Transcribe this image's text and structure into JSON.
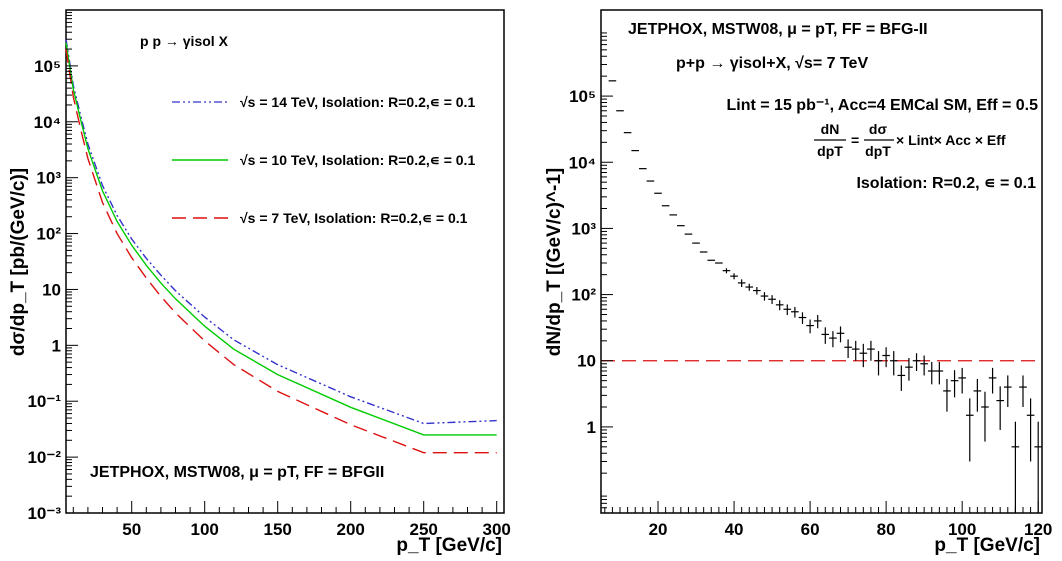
{
  "chart_data": [
    {
      "type": "line",
      "ylabel": "dσ/dp_T [pb/(GeV/c)]",
      "xlabel": "p_T [GeV/c]",
      "log_y": true,
      "xlim": [
        5,
        305
      ],
      "ylim": [
        0.001,
        1000000
      ],
      "x_ticks": [
        50,
        100,
        150,
        200,
        250,
        300
      ],
      "y_ticks": [
        {
          "value": 0.001,
          "label": "10⁻³"
        },
        {
          "value": 0.01,
          "label": "10⁻²"
        },
        {
          "value": 0.1,
          "label": "10⁻¹"
        },
        {
          "value": 1,
          "label": "1"
        },
        {
          "value": 10,
          "label": "10"
        },
        {
          "value": 100,
          "label": "10²"
        },
        {
          "value": 1000,
          "label": "10³"
        },
        {
          "value": 10000,
          "label": "10⁴"
        },
        {
          "value": 100000,
          "label": "10⁵"
        }
      ],
      "grid": false,
      "legend_position": "top-center",
      "process_label": "p p → γisol X",
      "annotation": "JETPHOX, MSTW08, μ = pT, FF = BFGII",
      "x": [
        5,
        10,
        15,
        20,
        30,
        40,
        50,
        60,
        70,
        80,
        100,
        120,
        150,
        200,
        250,
        300
      ],
      "series": [
        {
          "name": "√s = 14 TeV, Isolation: R=0.2,∊ = 0.1",
          "color": "#3333cc",
          "line_style": "dash-dot",
          "values": [
            300000,
            45000,
            13000,
            4000,
            720,
            210,
            80,
            36,
            18,
            9.5,
            3.2,
            1.25,
            0.45,
            0.12,
            0.04,
            0.045
          ]
        },
        {
          "name": "√s = 10 TeV, Isolation: R=0.2,∊ = 0.1",
          "color": "#00cc00",
          "line_style": "solid",
          "values": [
            260000,
            38000,
            11000,
            3300,
            580,
            165,
            62,
            27,
            13,
            6.8,
            2.2,
            0.85,
            0.3,
            0.078,
            0.025,
            0.025
          ]
        },
        {
          "name": "√s = 7 TeV, Isolation: R=0.2,∊ = 0.1",
          "color": "#dd1111",
          "line_style": "dashed",
          "values": [
            200000,
            28000,
            7500,
            2200,
            360,
            100,
            37,
            16,
            7.5,
            3.8,
            1.2,
            0.45,
            0.15,
            0.038,
            0.012,
            0.012
          ]
        }
      ]
    },
    {
      "type": "scatter",
      "ylabel": "dN/dp_T [(GeV/c)^-1]",
      "xlabel": "p_T [GeV/c]",
      "log_y": true,
      "xlim": [
        5,
        121
      ],
      "ylim": [
        0.05,
        2000000
      ],
      "x_ticks": [
        20,
        40,
        60,
        80,
        100,
        120
      ],
      "y_ticks": [
        {
          "value": 1,
          "label": "1"
        },
        {
          "value": 10,
          "label": "10"
        },
        {
          "value": 100,
          "label": "10²"
        },
        {
          "value": 1000,
          "label": "10³"
        },
        {
          "value": 10000,
          "label": "10⁴"
        },
        {
          "value": 100000,
          "label": "10⁵"
        }
      ],
      "grid": false,
      "reference_line": {
        "y": 10,
        "color": "#dd1111",
        "style": "dashed"
      },
      "header": "JETPHOX, MSTW08, μ = pT, FF = BFG-II",
      "process_label": "p+p → γisol+X, √s= 7 TeV",
      "lumi_label": "Lint = 15 pb⁻¹, Acc=4 EMCal SM, Eff = 0.5",
      "formula_lhs_num": "dN",
      "formula_lhs_den": "dpT",
      "formula_eq": "=",
      "formula_rhs_num": "dσ",
      "formula_rhs_den": "dpT",
      "formula_tail": "× Lint× Acc × Eff",
      "isolation_label": "Isolation: R=0.2, ∊ = 0.1",
      "points": [
        {
          "x": 8,
          "y": 170000,
          "err": 0
        },
        {
          "x": 10,
          "y": 60000,
          "err": 0
        },
        {
          "x": 12,
          "y": 28000,
          "err": 0
        },
        {
          "x": 14,
          "y": 15000,
          "err": 0
        },
        {
          "x": 16,
          "y": 8000,
          "err": 0
        },
        {
          "x": 18,
          "y": 5200,
          "err": 0
        },
        {
          "x": 20,
          "y": 3400,
          "err": 0
        },
        {
          "x": 22,
          "y": 2200,
          "err": 0
        },
        {
          "x": 24,
          "y": 1600,
          "err": 0
        },
        {
          "x": 26,
          "y": 1100,
          "err": 0
        },
        {
          "x": 28,
          "y": 820,
          "err": 0
        },
        {
          "x": 30,
          "y": 600,
          "err": 0
        },
        {
          "x": 32,
          "y": 440,
          "err": 0
        },
        {
          "x": 34,
          "y": 330,
          "err": 0
        },
        {
          "x": 36,
          "y": 300,
          "err": 0
        },
        {
          "x": 38,
          "y": 230,
          "err": 20
        },
        {
          "x": 40,
          "y": 190,
          "err": 20
        },
        {
          "x": 42,
          "y": 150,
          "err": 20
        },
        {
          "x": 44,
          "y": 130,
          "err": 16
        },
        {
          "x": 46,
          "y": 115,
          "err": 15
        },
        {
          "x": 48,
          "y": 95,
          "err": 14
        },
        {
          "x": 50,
          "y": 85,
          "err": 13
        },
        {
          "x": 52,
          "y": 70,
          "err": 12
        },
        {
          "x": 54,
          "y": 60,
          "err": 11
        },
        {
          "x": 56,
          "y": 55,
          "err": 10
        },
        {
          "x": 58,
          "y": 45,
          "err": 9
        },
        {
          "x": 60,
          "y": 34,
          "err": 8
        },
        {
          "x": 62,
          "y": 40,
          "err": 9
        },
        {
          "x": 64,
          "y": 25,
          "err": 7
        },
        {
          "x": 66,
          "y": 22,
          "err": 6
        },
        {
          "x": 68,
          "y": 26,
          "err": 7
        },
        {
          "x": 70,
          "y": 16,
          "err": 5
        },
        {
          "x": 72,
          "y": 15,
          "err": 5
        },
        {
          "x": 74,
          "y": 13,
          "err": 5
        },
        {
          "x": 76,
          "y": 15,
          "err": 5
        },
        {
          "x": 78,
          "y": 10,
          "err": 4
        },
        {
          "x": 80,
          "y": 12,
          "err": 4
        },
        {
          "x": 82,
          "y": 10,
          "err": 4
        },
        {
          "x": 84,
          "y": 6,
          "err": 2.5
        },
        {
          "x": 86,
          "y": 8,
          "err": 3
        },
        {
          "x": 88,
          "y": 10,
          "err": 3
        },
        {
          "x": 90,
          "y": 9,
          "err": 3
        },
        {
          "x": 92,
          "y": 7,
          "err": 2.6
        },
        {
          "x": 94,
          "y": 7,
          "err": 2.6
        },
        {
          "x": 96,
          "y": 3.5,
          "err": 1.8
        },
        {
          "x": 98,
          "y": 5,
          "err": 2.2
        },
        {
          "x": 100,
          "y": 5.5,
          "err": 2.3
        },
        {
          "x": 102,
          "y": 1.5,
          "err": 1.2
        },
        {
          "x": 104,
          "y": 3.5,
          "err": 1.8
        },
        {
          "x": 106,
          "y": 2,
          "err": 1.4
        },
        {
          "x": 108,
          "y": 5.5,
          "err": 2.3
        },
        {
          "x": 110,
          "y": 2.5,
          "err": 1.6
        },
        {
          "x": 112,
          "y": 4,
          "err": 2
        },
        {
          "x": 114,
          "y": 0.5,
          "err": 0.7
        },
        {
          "x": 116,
          "y": 4,
          "err": 2
        },
        {
          "x": 118,
          "y": 1.5,
          "err": 1.2
        },
        {
          "x": 120,
          "y": 0.5,
          "err": 0.7
        }
      ]
    }
  ]
}
